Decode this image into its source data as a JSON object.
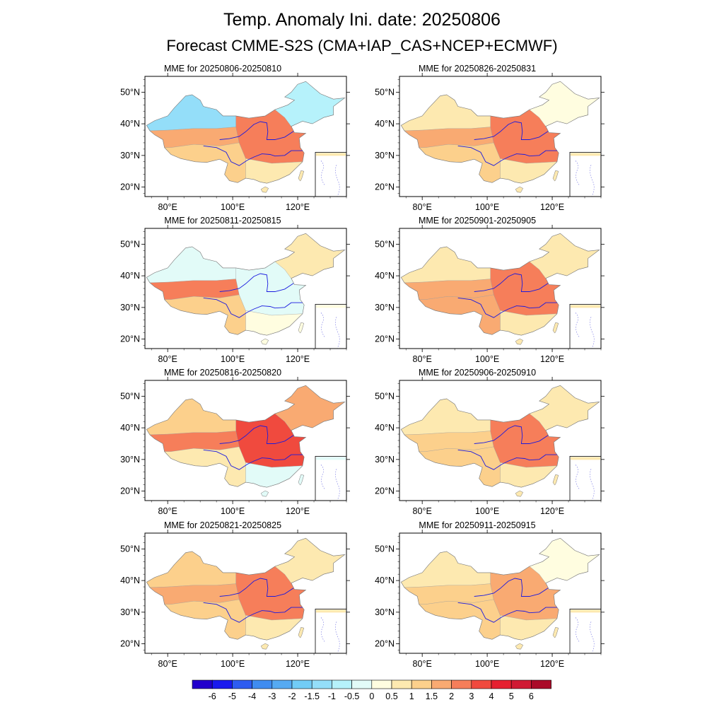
{
  "title": "Temp. Anomaly Ini. date: 20250806",
  "subtitle": "Forecast CMME-S2S (CMA+IAP_CAS+NCEP+ECMWF)",
  "axes": {
    "lat_ticks": [
      {
        "value": 50,
        "label": "50°N"
      },
      {
        "value": 40,
        "label": "40°N"
      },
      {
        "value": 30,
        "label": "30°N"
      },
      {
        "value": 20,
        "label": "20°N"
      }
    ],
    "lon_ticks": [
      {
        "value": 80,
        "label": "80°E"
      },
      {
        "value": 100,
        "label": "100°E"
      },
      {
        "value": 120,
        "label": "120°E"
      }
    ],
    "lon_range": [
      73,
      135
    ],
    "lat_range": [
      17,
      55
    ]
  },
  "panels": [
    {
      "title": "MME for 20250806-20250810",
      "column": "left",
      "row": 1,
      "anomalies": {
        "northwest": -1.5,
        "west": 1.5,
        "southwest": 1,
        "central": 2,
        "south": 0.5,
        "northeast": -1
      }
    },
    {
      "title": "MME for 20250811-20250815",
      "column": "left",
      "row": 2,
      "anomalies": {
        "northwest": -0.5,
        "west": 2,
        "southwest": 1,
        "central": -0.5,
        "south": 0,
        "northeast": 0.5
      }
    },
    {
      "title": "MME for 20250816-20250820",
      "column": "left",
      "row": 3,
      "anomalies": {
        "northwest": 1,
        "west": 2,
        "southwest": 0.5,
        "central": 3,
        "south": -0.5,
        "northeast": 1.5
      }
    },
    {
      "title": "MME for 20250821-20250825",
      "column": "left",
      "row": 4,
      "anomalies": {
        "northwest": 1,
        "west": 1.5,
        "southwest": 1,
        "central": 2,
        "south": 0.5,
        "northeast": 0.5
      }
    },
    {
      "title": "MME for 20250826-20250831",
      "column": "right",
      "row": 1,
      "anomalies": {
        "northwest": 0.5,
        "west": 1.5,
        "southwest": 1,
        "central": 2,
        "south": 0.5,
        "northeast": 0
      }
    },
    {
      "title": "MME for 20250901-20250905",
      "column": "right",
      "row": 2,
      "anomalies": {
        "northwest": 0.5,
        "west": 1.5,
        "southwest": 1.5,
        "central": 2,
        "south": 0.5,
        "northeast": 0.5
      }
    },
    {
      "title": "MME for 20250906-20250910",
      "column": "right",
      "row": 3,
      "anomalies": {
        "northwest": 0.5,
        "west": 1,
        "southwest": 1,
        "central": 2,
        "south": 0.5,
        "northeast": 0.5
      }
    },
    {
      "title": "MME for 20250911-20250915",
      "column": "right",
      "row": 4,
      "anomalies": {
        "northwest": 0.5,
        "west": 1,
        "southwest": 1,
        "central": 1.5,
        "south": 0.5,
        "northeast": 0
      }
    }
  ],
  "colorbar": {
    "labels": [
      "-6",
      "-5",
      "-4",
      "-3",
      "-2",
      "-1.5",
      "-1",
      "-0.5",
      "0",
      "0.5",
      "1",
      "1.5",
      "2",
      "3",
      "4",
      "5",
      "6"
    ],
    "colors": [
      "#2200cc",
      "#1a1aee",
      "#2e5cf0",
      "#3f8cf0",
      "#56aaf2",
      "#72ccf6",
      "#94def9",
      "#b6f2fb",
      "#e2fbf8",
      "#fffde0",
      "#fde9b0",
      "#fcd08c",
      "#f9aa72",
      "#f67e5a",
      "#f04a3e",
      "#e62030",
      "#d01a34",
      "#aa0a28"
    ]
  }
}
